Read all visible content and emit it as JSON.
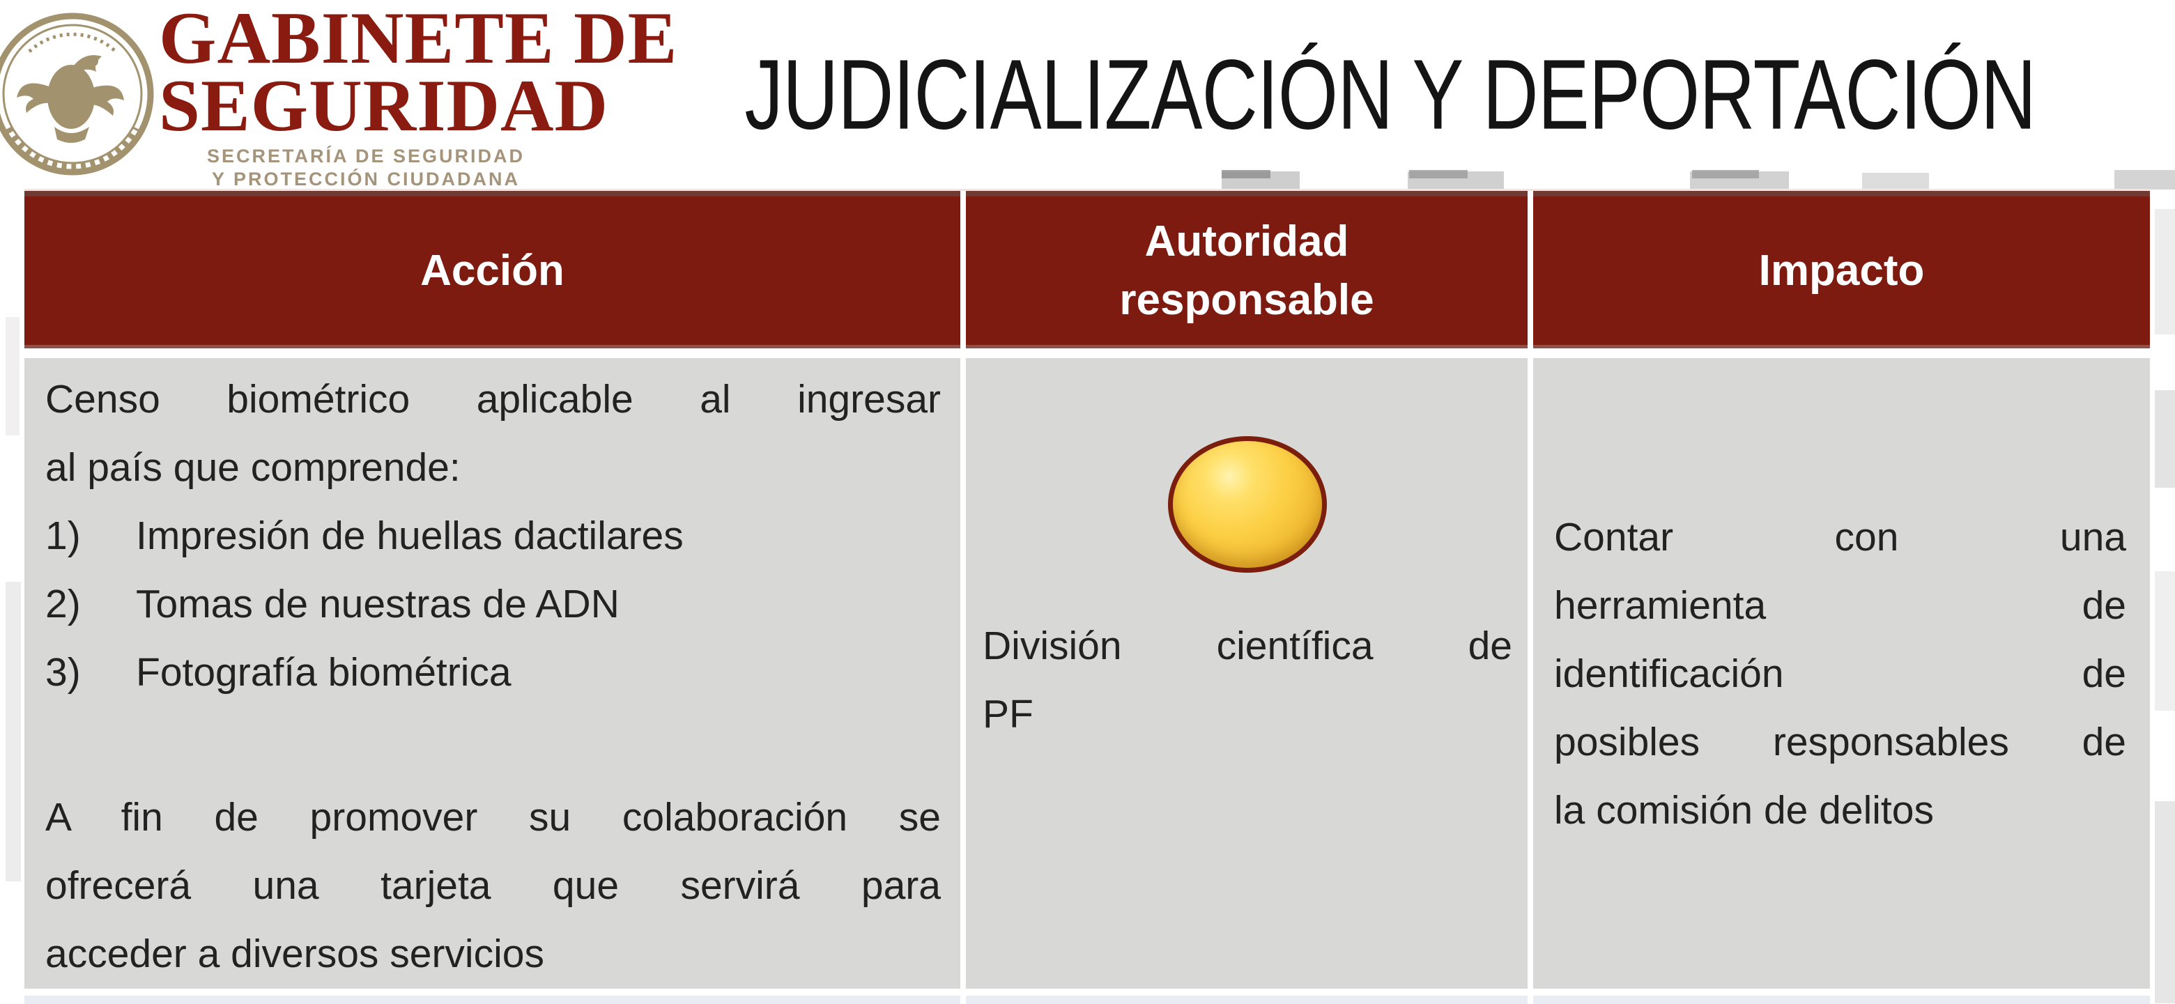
{
  "logo": {
    "seal_icon": "mexican-coat-of-arms-seal",
    "wordmark_lines": [
      "GABINETE DE",
      "SEGURIDAD"
    ],
    "subtitle_lines": [
      "SECRETARÍA DE SEGURIDAD",
      "Y PROTECCIÓN CIUDADANA"
    ],
    "colors": {
      "wordmark": "#8a1b10",
      "subtitle": "#a5937a"
    }
  },
  "header": {
    "title": "JUDICIALIZACIÓN Y DEPORTACIÓN"
  },
  "table": {
    "colors": {
      "header_bg": "#7d1b10",
      "header_border_top": "#6e3a32",
      "header_text": "#ffffff",
      "body_bg": "#d8d8d6",
      "next_row_bg": "#e9ecf2"
    },
    "columns": [
      {
        "label_lines": [
          "Acción"
        ]
      },
      {
        "label_lines": [
          "Autoridad",
          "responsable"
        ]
      },
      {
        "label_lines": [
          "Impacto"
        ]
      }
    ],
    "row": {
      "accion": {
        "intro_lines": [
          "Censo biométrico aplicable al ingresar",
          "al país que comprende:"
        ],
        "list": [
          {
            "num": "1)",
            "text": "Impresión de huellas dactilares"
          },
          {
            "num": "2)",
            "text": "Tomas de nuestras de ADN"
          },
          {
            "num": "3)",
            "text": "Fotografía biométrica"
          }
        ],
        "outro_lines": [
          "A fin de promover su colaboración se",
          "ofrecerá una tarjeta que servirá para",
          "acceder a diversos servicios"
        ]
      },
      "autoridad": {
        "marker_icon": "yellow-circle-marker",
        "marker_colors": {
          "fill": "#fccf44",
          "border": "#7b1e0d"
        },
        "lines": [
          "División científica de",
          "PF"
        ]
      },
      "impacto": {
        "lines": [
          "Contar con una",
          "herramienta de",
          "identificación de",
          "posibles responsables de",
          "la comisión de delitos"
        ]
      }
    }
  }
}
